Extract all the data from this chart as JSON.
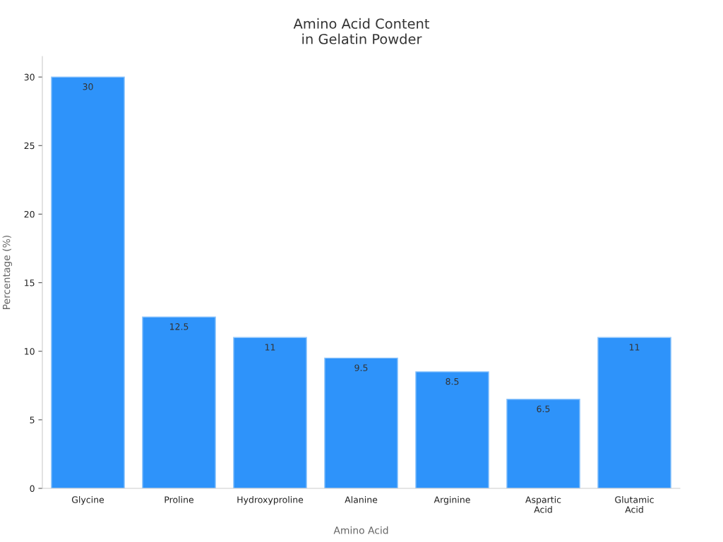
{
  "chart_data": {
    "type": "bar",
    "title": "Amino Acid Content\nin Gelatin Powder",
    "xlabel": "Amino Acid",
    "ylabel": "Percentage (%)",
    "categories": [
      "Glycine",
      "Proline",
      "Hydroxyproline",
      "Alanine",
      "Arginine",
      "Aspartic\nAcid",
      "Glutamic\nAcid"
    ],
    "values": [
      30,
      12.5,
      11,
      9.5,
      8.5,
      6.5,
      11
    ],
    "color": "#2e93fa",
    "ylim": [
      0,
      31.5
    ],
    "yticks": [
      0,
      5,
      10,
      15,
      20,
      25,
      30
    ],
    "grid": false,
    "data_labels": true,
    "legend": false
  }
}
